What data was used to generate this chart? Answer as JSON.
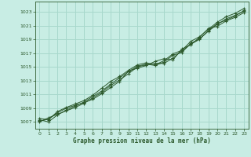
{
  "title": "Graphe pression niveau de la mer (hPa)",
  "background_color": "#c8ede4",
  "grid_color": "#a8d8cc",
  "line_color": "#2d5a2d",
  "xlim": [
    -0.5,
    23.5
  ],
  "ylim": [
    1006.0,
    1024.5
  ],
  "yticks": [
    1007,
    1009,
    1011,
    1013,
    1015,
    1017,
    1019,
    1021,
    1023
  ],
  "xticks": [
    0,
    1,
    2,
    3,
    4,
    5,
    6,
    7,
    8,
    9,
    10,
    11,
    12,
    13,
    14,
    15,
    16,
    17,
    18,
    19,
    20,
    21,
    22,
    23
  ],
  "series": [
    [
      1007.0,
      1007.6,
      1008.1,
      1008.6,
      1009.1,
      1009.7,
      1010.5,
      1011.3,
      1012.3,
      1013.1,
      1014.0,
      1015.0,
      1015.3,
      1015.5,
      1015.5,
      1016.3,
      1017.3,
      1018.3,
      1019.0,
      1020.3,
      1021.3,
      1021.8,
      1022.4,
      1023.2
    ],
    [
      1007.1,
      1007.4,
      1008.3,
      1009.0,
      1009.4,
      1009.8,
      1010.3,
      1011.1,
      1012.0,
      1012.9,
      1014.4,
      1014.8,
      1015.2,
      1015.8,
      1016.2,
      1016.0,
      1017.6,
      1018.2,
      1019.3,
      1020.6,
      1020.9,
      1021.7,
      1022.2,
      1022.9
    ],
    [
      1007.3,
      1007.0,
      1008.0,
      1008.7,
      1009.3,
      1009.9,
      1010.7,
      1011.5,
      1012.5,
      1013.4,
      1014.3,
      1015.1,
      1015.4,
      1015.2,
      1015.7,
      1016.7,
      1017.1,
      1018.4,
      1019.1,
      1020.2,
      1021.2,
      1022.0,
      1022.5,
      1023.1
    ],
    [
      1007.5,
      1007.3,
      1008.5,
      1009.1,
      1009.6,
      1010.1,
      1010.9,
      1011.9,
      1012.9,
      1013.6,
      1014.5,
      1015.3,
      1015.6,
      1015.3,
      1015.9,
      1016.9,
      1017.4,
      1018.7,
      1019.4,
      1020.5,
      1021.5,
      1022.3,
      1022.8,
      1023.5
    ]
  ]
}
